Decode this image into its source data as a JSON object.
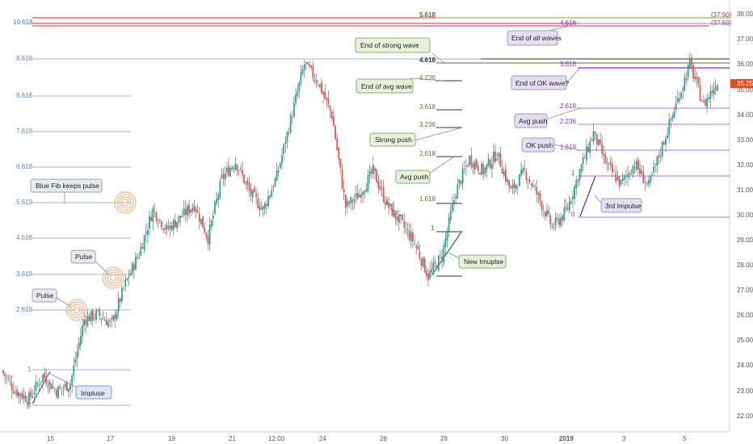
{
  "chart_data": {
    "type": "candlestick",
    "title": "",
    "y_axis": {
      "ylim": [
        21.6,
        38.5
      ],
      "ticks": [
        "22.00",
        "23.00",
        "24.00",
        "25.00",
        "26.00",
        "27.00",
        "28.00",
        "29.00",
        "30.00",
        "31.00",
        "32.00",
        "33.00",
        "34.00",
        "35.00",
        "36.00",
        "37.00",
        "38.00"
      ],
      "last_price": "35.25"
    },
    "x_axis": {
      "ticks": [
        "15",
        "17",
        "19",
        "21",
        "12:00",
        "24",
        "26",
        "28",
        "30",
        "2019",
        "3",
        "5"
      ]
    },
    "ohlc_path": [
      {
        "x": "14",
        "y": 24.0
      },
      {
        "x": "14.4",
        "y": 23.2
      },
      {
        "x": "14.6",
        "y": 22.9
      },
      {
        "x": "15",
        "y": 23.8
      },
      {
        "x": "15.4",
        "y": 23.2
      },
      {
        "x": "15.8",
        "y": 23.5
      },
      {
        "x": "16",
        "y": 26.0
      },
      {
        "x": "16.5",
        "y": 26.2
      },
      {
        "x": "17",
        "y": 25.8
      },
      {
        "x": "17.3",
        "y": 27.4
      },
      {
        "x": "17.6",
        "y": 28.6
      },
      {
        "x": "17.8",
        "y": 30.3
      },
      {
        "x": "18.2",
        "y": 29.5
      },
      {
        "x": "18.8",
        "y": 30.0
      },
      {
        "x": "19.3",
        "y": 30.5
      },
      {
        "x": "19.8",
        "y": 29.2
      },
      {
        "x": "20.5",
        "y": 31.5
      },
      {
        "x": "21",
        "y": 32.2
      },
      {
        "x": "21.6",
        "y": 31.0
      },
      {
        "x": "22",
        "y": 30.3
      },
      {
        "x": "22.7",
        "y": 31.6
      },
      {
        "x": "23.3",
        "y": 33.8
      },
      {
        "x": "23.9",
        "y": 36.0
      },
      {
        "x": "24.2",
        "y": 35.3
      },
      {
        "x": "24.6",
        "y": 34.0
      },
      {
        "x": "25",
        "y": 30.4
      },
      {
        "x": "25.5",
        "y": 30.9
      },
      {
        "x": "26",
        "y": 31.8
      },
      {
        "x": "26.5",
        "y": 30.5
      },
      {
        "x": "27",
        "y": 29.8
      },
      {
        "x": "27.5",
        "y": 29.0
      },
      {
        "x": "27.8",
        "y": 27.7
      },
      {
        "x": "28.2",
        "y": 28.5
      },
      {
        "x": "28.5",
        "y": 31.0
      },
      {
        "x": "28.8",
        "y": 32.3
      },
      {
        "x": "29.4",
        "y": 31.8
      },
      {
        "x": "29.9",
        "y": 32.5
      },
      {
        "x": "30.4",
        "y": 31.0
      },
      {
        "x": "30.8",
        "y": 31.8
      },
      {
        "x": "31.2",
        "y": 30.8
      },
      {
        "x": "31.6",
        "y": 29.6
      },
      {
        "x": "2019",
        "y": 30.2
      },
      {
        "x": "2",
        "y": 31.8
      },
      {
        "x": "2.6",
        "y": 33.3
      },
      {
        "x": "3.2",
        "y": 32.0
      },
      {
        "x": "3.7",
        "y": 31.3
      },
      {
        "x": "4.1",
        "y": 32.1
      },
      {
        "x": "4.6",
        "y": 31.2
      },
      {
        "x": "5",
        "y": 32.8
      },
      {
        "x": "5.3",
        "y": 34.4
      },
      {
        "x": "5.5",
        "y": 36.0
      },
      {
        "x": "5.8",
        "y": 34.4
      },
      {
        "x": "6",
        "y": 35.3
      }
    ]
  },
  "price_labels": {
    "top_a": "(37.90)",
    "top_b": "(37.60)"
  },
  "left_fib": {
    "levels": [
      "10.618",
      "9.618",
      "8.618",
      "7.618",
      "6.618",
      "5.618",
      "4.618",
      "3.618",
      "2.618",
      "1",
      "0"
    ],
    "color": "#5b87c9"
  },
  "mid_fib": {
    "levels": [
      "5.618",
      "4.618",
      "4.236",
      "3.618",
      "3.236",
      "2.618",
      "1.618",
      "1"
    ],
    "color": "#4f7a1f"
  },
  "right_fib": {
    "levels": [
      "4.618",
      "3.618",
      "2.618",
      "2.236",
      "1.618",
      "1",
      "0"
    ],
    "color": "#8a2be2"
  },
  "notes": {
    "impluse": "Impluse",
    "pulse1": "Pulse",
    "pulse2": "Pulse",
    "blue_fib": "Blue Fib keeps pulse",
    "new_impulse": "New Imuplse",
    "avg_push": "Avg push",
    "strong_push": "Strong push",
    "end_avg": "End of avg wave",
    "end_strong": "End of strong wave",
    "third_impulse": "3rd Impulse",
    "ok_push": "OK push",
    "avg_push2": "Avg push",
    "end_ok": "End of OK wave?",
    "end_all": "End of all waves"
  },
  "colors": {
    "up": "#26a69a",
    "down": "#ef5350",
    "wick": "#555555",
    "last_price_bg": "#e04d2b",
    "red_line": "#d32f2f",
    "dark_line": "#333333",
    "green_note_bg": "#e6f2dc",
    "blue_note_bg": "#dde8f5",
    "purple_note_bg": "#e4dff0"
  }
}
